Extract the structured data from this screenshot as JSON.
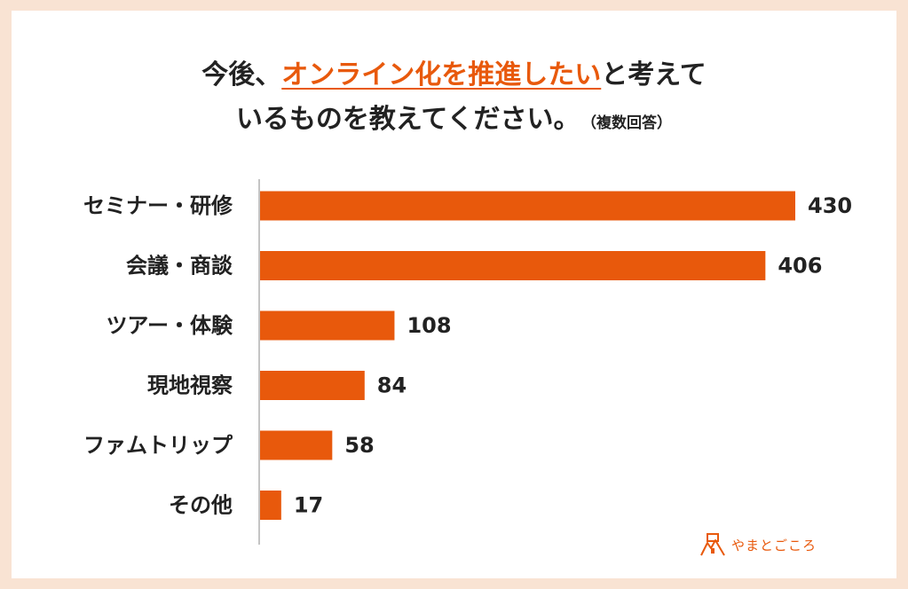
{
  "title": {
    "part1": "今後、",
    "highlight": "オンライン化を推進したい",
    "part2": "と考えて",
    "line2": "いるものを教えてください。",
    "note": "（複数回答）"
  },
  "chart_data": {
    "type": "bar",
    "orientation": "horizontal",
    "categories": [
      "セミナー・研修",
      "会議・商談",
      "ツアー・体験",
      "現地視察",
      "ファムトリップ",
      "その他"
    ],
    "values": [
      430,
      406,
      108,
      84,
      58,
      17
    ],
    "xlim": [
      0,
      430
    ],
    "data_labels": true,
    "bar_color": "#e8590c",
    "grid": false
  },
  "logo": {
    "text": "やまとごころ"
  },
  "colors": {
    "accent": "#e8590c",
    "background": "#f9e3d3",
    "text": "#222222"
  }
}
